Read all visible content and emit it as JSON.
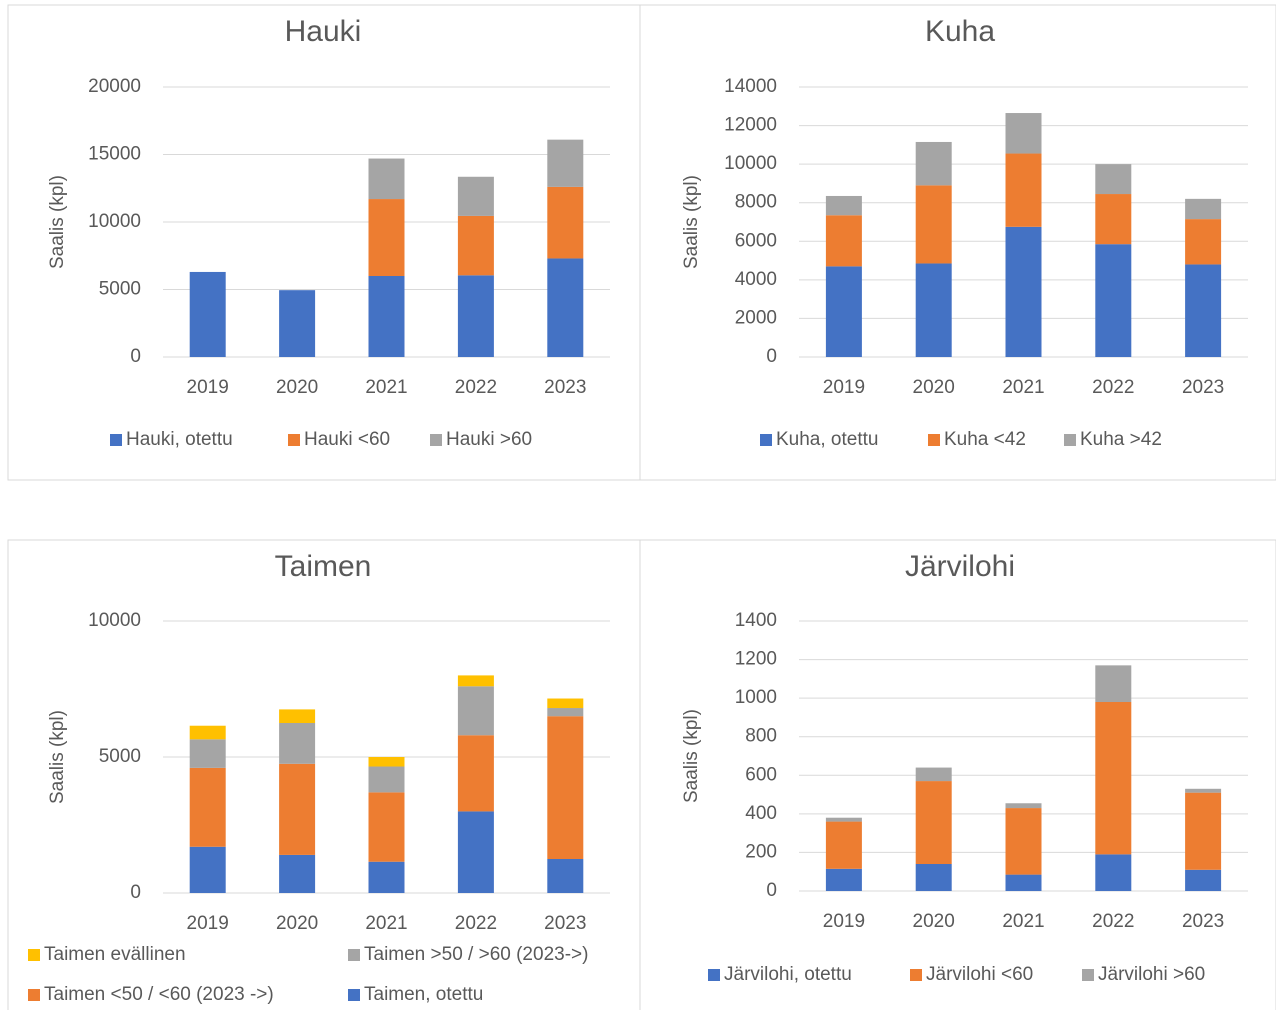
{
  "chart_data": [
    {
      "type": "stacked_bar",
      "title": "Hauki",
      "y_label": "Saalis (kpl)",
      "categories": [
        "2019",
        "2020",
        "2021",
        "2022",
        "2023"
      ],
      "ylim": [
        0,
        20000
      ],
      "yticks": [
        0,
        5000,
        10000,
        15000,
        20000
      ],
      "grid": true,
      "series": [
        {
          "name": "Hauki, otettu",
          "color": "#4472c4",
          "values": [
            6300,
            4950,
            6000,
            6050,
            7300
          ]
        },
        {
          "name": "Hauki <60",
          "color": "#ed7d31",
          "values": [
            0,
            0,
            5700,
            4400,
            5300
          ]
        },
        {
          "name": "Hauki >60",
          "color": "#a5a5a5",
          "values": [
            0,
            0,
            3000,
            2900,
            3500
          ]
        }
      ]
    },
    {
      "type": "stacked_bar",
      "title": "Kuha",
      "y_label": "Saalis (kpl)",
      "categories": [
        "2019",
        "2020",
        "2021",
        "2022",
        "2023"
      ],
      "ylim": [
        0,
        14000
      ],
      "yticks": [
        0,
        2000,
        4000,
        6000,
        8000,
        10000,
        12000,
        14000
      ],
      "grid": true,
      "series": [
        {
          "name": "Kuha, otettu",
          "color": "#4472c4",
          "values": [
            4700,
            4850,
            6750,
            5850,
            4800
          ]
        },
        {
          "name": "Kuha <42",
          "color": "#ed7d31",
          "values": [
            2650,
            4050,
            3800,
            2600,
            2350
          ]
        },
        {
          "name": "Kuha >42",
          "color": "#a5a5a5",
          "values": [
            1000,
            2250,
            2100,
            1550,
            1050
          ]
        }
      ]
    },
    {
      "type": "stacked_bar",
      "title": "Taimen",
      "y_label": "Saalis (kpl)",
      "categories": [
        "2019",
        "2020",
        "2021",
        "2022",
        "2023"
      ],
      "ylim": [
        0,
        10000
      ],
      "yticks": [
        0,
        5000,
        10000
      ],
      "grid": true,
      "series": [
        {
          "name": "Taimen, otettu",
          "color": "#4472c4",
          "values": [
            1700,
            1400,
            1150,
            3000,
            1250
          ]
        },
        {
          "name": "Taimen <50 / <60 (2023 ->)",
          "color": "#ed7d31",
          "values": [
            2900,
            3350,
            2550,
            2800,
            5250
          ]
        },
        {
          "name": "Taimen >50 / >60 (2023->)",
          "color": "#a5a5a5",
          "values": [
            1050,
            1500,
            950,
            1800,
            300
          ]
        },
        {
          "name": "Taimen evällinen",
          "color": "#ffc000",
          "values": [
            500,
            500,
            350,
            400,
            350
          ]
        }
      ]
    },
    {
      "type": "stacked_bar",
      "title": "Järvilohi",
      "y_label": "Saalis (kpl)",
      "categories": [
        "2019",
        "2020",
        "2021",
        "2022",
        "2023"
      ],
      "ylim": [
        0,
        1400
      ],
      "yticks": [
        0,
        200,
        400,
        600,
        800,
        1000,
        1200,
        1400
      ],
      "grid": true,
      "series": [
        {
          "name": "Järvilohi, otettu",
          "color": "#4472c4",
          "values": [
            115,
            140,
            85,
            190,
            110
          ]
        },
        {
          "name": "Järvilohi <60",
          "color": "#ed7d31",
          "values": [
            245,
            430,
            345,
            790,
            400
          ]
        },
        {
          "name": "Järvilohi >60",
          "color": "#a5a5a5",
          "values": [
            20,
            70,
            25,
            190,
            20
          ]
        }
      ]
    }
  ]
}
